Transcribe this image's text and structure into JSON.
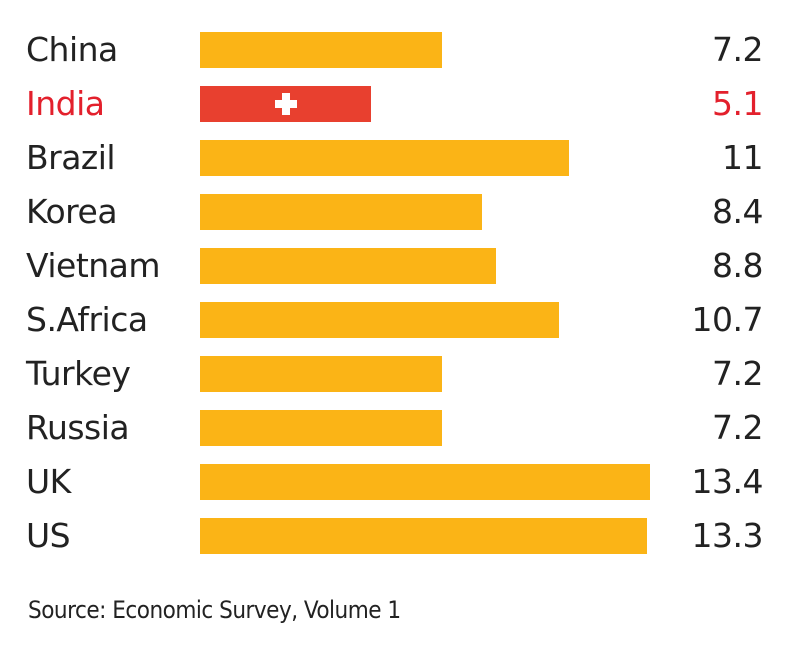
{
  "chart_data": {
    "type": "bar",
    "orientation": "horizontal",
    "categories": [
      "China",
      "India",
      "Brazil",
      "Korea",
      "Vietnam",
      "S.Africa",
      "Turkey",
      "Russia",
      "UK",
      "US"
    ],
    "values": [
      7.2,
      5.1,
      11,
      8.4,
      8.8,
      10.7,
      7.2,
      7.2,
      13.4,
      13.3
    ],
    "value_labels": [
      "7.2",
      "5.1",
      "11",
      "8.4",
      "8.8",
      "10.7",
      "7.2",
      "7.2",
      "13.4",
      "13.3"
    ],
    "highlight": "India",
    "xlim": [
      0,
      13.4
    ],
    "grid": false,
    "title": "",
    "xlabel": "",
    "ylabel": ""
  },
  "source": "Source: Economic Survey, Volume 1",
  "colors": {
    "bar": "#fbb416",
    "highlight_bar": "#e8402f",
    "highlight_text": "#e3202c"
  },
  "icons": {
    "highlight_marker": "white-cross-icon"
  }
}
